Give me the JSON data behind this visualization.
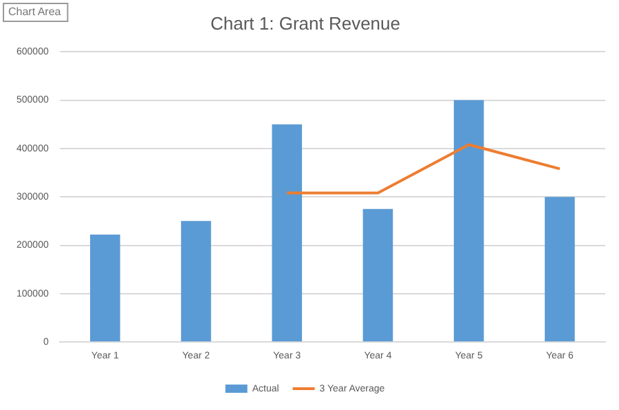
{
  "chart_data": {
    "type": "bar",
    "title": "Chart 1: Grant Revenue",
    "categories": [
      "Year 1",
      "Year 2",
      "Year 3",
      "Year 4",
      "Year 5",
      "Year 6"
    ],
    "series": [
      {
        "name": "Actual",
        "color": "#5b9bd5",
        "values": [
          222000,
          250000,
          450000,
          275000,
          500000,
          300000
        ]
      },
      {
        "name": "3 Year Average",
        "type": "line",
        "color": "#ed7d31",
        "values": [
          null,
          null,
          308000,
          308000,
          408000,
          358000
        ]
      }
    ],
    "ylim": [
      0,
      600000
    ],
    "yticks": [
      0,
      100000,
      200000,
      300000,
      400000,
      500000,
      600000
    ],
    "grid": "y",
    "legend": "bottom",
    "marker": "none",
    "annotations": [
      "Chart Area"
    ]
  }
}
